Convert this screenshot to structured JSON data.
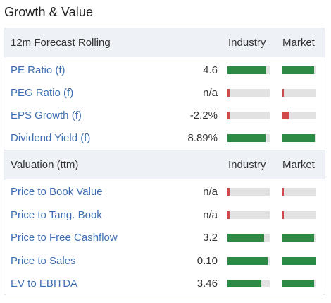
{
  "title": "Growth & Value",
  "colors": {
    "good": "#2d8a45",
    "bad": "#d14a4a",
    "track": "#e2e2e2",
    "link": "#3f6fb3"
  },
  "sections": [
    {
      "header": {
        "label": "12m Forecast Rolling",
        "industry": "Industry",
        "market": "Market"
      },
      "rows": [
        {
          "label": "PE Ratio (f)",
          "value": "4.6",
          "industry": {
            "level": 0.92,
            "status": "good"
          },
          "market": {
            "level": 0.96,
            "status": "good"
          }
        },
        {
          "label": "PEG Ratio (f)",
          "value": "n/a",
          "industry": {
            "level": 0.05,
            "status": "bad"
          },
          "market": {
            "level": 0.05,
            "status": "bad"
          }
        },
        {
          "label": "EPS Growth (f)",
          "value": "-2.2%",
          "industry": {
            "level": 0.05,
            "status": "bad"
          },
          "market": {
            "level": 0.2,
            "status": "bad"
          }
        },
        {
          "label": "Dividend Yield (f)",
          "value": "8.89%",
          "industry": {
            "level": 0.9,
            "status": "good"
          },
          "market": {
            "level": 0.98,
            "status": "good"
          }
        }
      ]
    },
    {
      "header": {
        "label": "Valuation (ttm)",
        "industry": "Industry",
        "market": "Market"
      },
      "rows": [
        {
          "label": "Price to Book Value",
          "value": "n/a",
          "industry": {
            "level": 0.05,
            "status": "bad"
          },
          "market": {
            "level": 0.05,
            "status": "bad"
          }
        },
        {
          "label": "Price to Tang. Book",
          "value": "n/a",
          "industry": {
            "level": 0.05,
            "status": "bad"
          },
          "market": {
            "level": 0.05,
            "status": "bad"
          }
        },
        {
          "label": "Price to Free Cashflow",
          "value": "3.2",
          "industry": {
            "level": 0.86,
            "status": "good"
          },
          "market": {
            "level": 0.95,
            "status": "good"
          }
        },
        {
          "label": "Price to Sales",
          "value": "0.10",
          "industry": {
            "level": 0.95,
            "status": "good"
          },
          "market": {
            "level": 1.0,
            "status": "good"
          }
        },
        {
          "label": "EV to EBITDA",
          "value": "3.46",
          "industry": {
            "level": 0.8,
            "status": "good"
          },
          "market": {
            "level": 0.95,
            "status": "good"
          }
        }
      ]
    }
  ]
}
